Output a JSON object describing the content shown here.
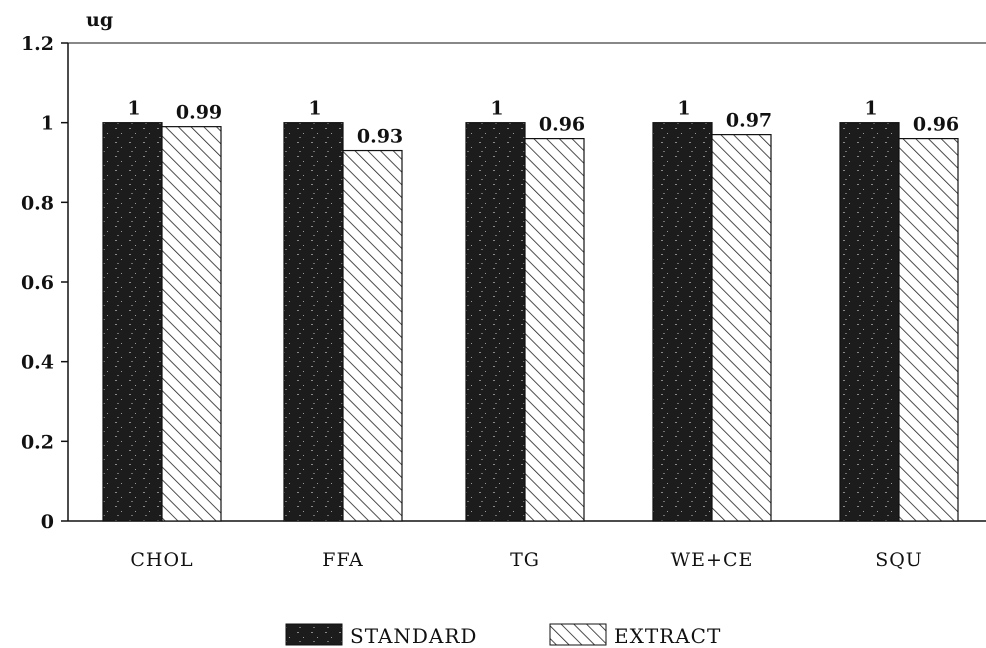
{
  "chart_data": {
    "type": "bar",
    "title": "",
    "ylabel": "ug",
    "xlabel": "",
    "ylim": [
      0,
      1.2
    ],
    "yticks": [
      "0",
      "0.2",
      "0.4",
      "0.6",
      "0.8",
      "1",
      "1.2"
    ],
    "categories": [
      "CHOL",
      "FFA",
      "TG",
      "WE+CE",
      "SQU"
    ],
    "series": [
      {
        "name": "STANDARD",
        "values": [
          1,
          1,
          1,
          1,
          1
        ],
        "labels": [
          "1",
          "1",
          "1",
          "1",
          "1"
        ],
        "fill": "#1c1c1c"
      },
      {
        "name": "EXTRACT",
        "values": [
          0.99,
          0.93,
          0.96,
          0.97,
          0.96
        ],
        "labels": [
          "0.99",
          "0.93",
          "0.96",
          "0.97",
          "0.96"
        ],
        "fill": "hatch"
      }
    ],
    "legend_position": "bottom-center",
    "grid": false
  }
}
